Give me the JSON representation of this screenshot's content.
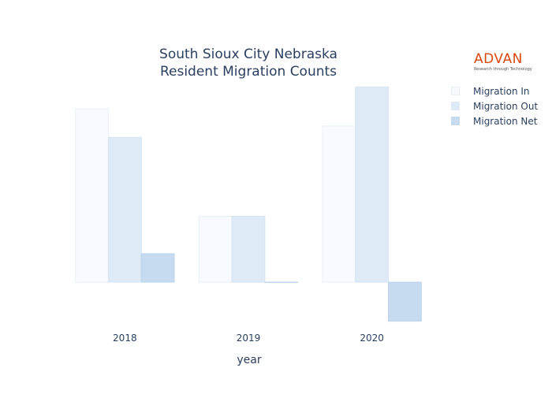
{
  "title": {
    "line1": "South Sioux City Nebraska",
    "line2": "Resident Migration Counts"
  },
  "logo": {
    "word": "ADVAN",
    "tagline": "Research through Technology"
  },
  "colors": {
    "migration_in": "#f7fbff",
    "migration_out": "#deebf7",
    "migration_net": "#c6dbef"
  },
  "chart_data": {
    "type": "bar",
    "xlabel": "year",
    "ylabel": "",
    "categories": [
      "2018",
      "2019",
      "2020"
    ],
    "series": [
      {
        "name": "Migration In",
        "values": [
          213,
          81,
          192
        ]
      },
      {
        "name": "Migration Out",
        "values": [
          178,
          81,
          240
        ]
      },
      {
        "name": "Migration Net",
        "values": [
          35,
          0,
          -48
        ]
      }
    ],
    "ylim": [
      -60,
      250
    ],
    "grid": false,
    "legend_position": "top-right"
  }
}
